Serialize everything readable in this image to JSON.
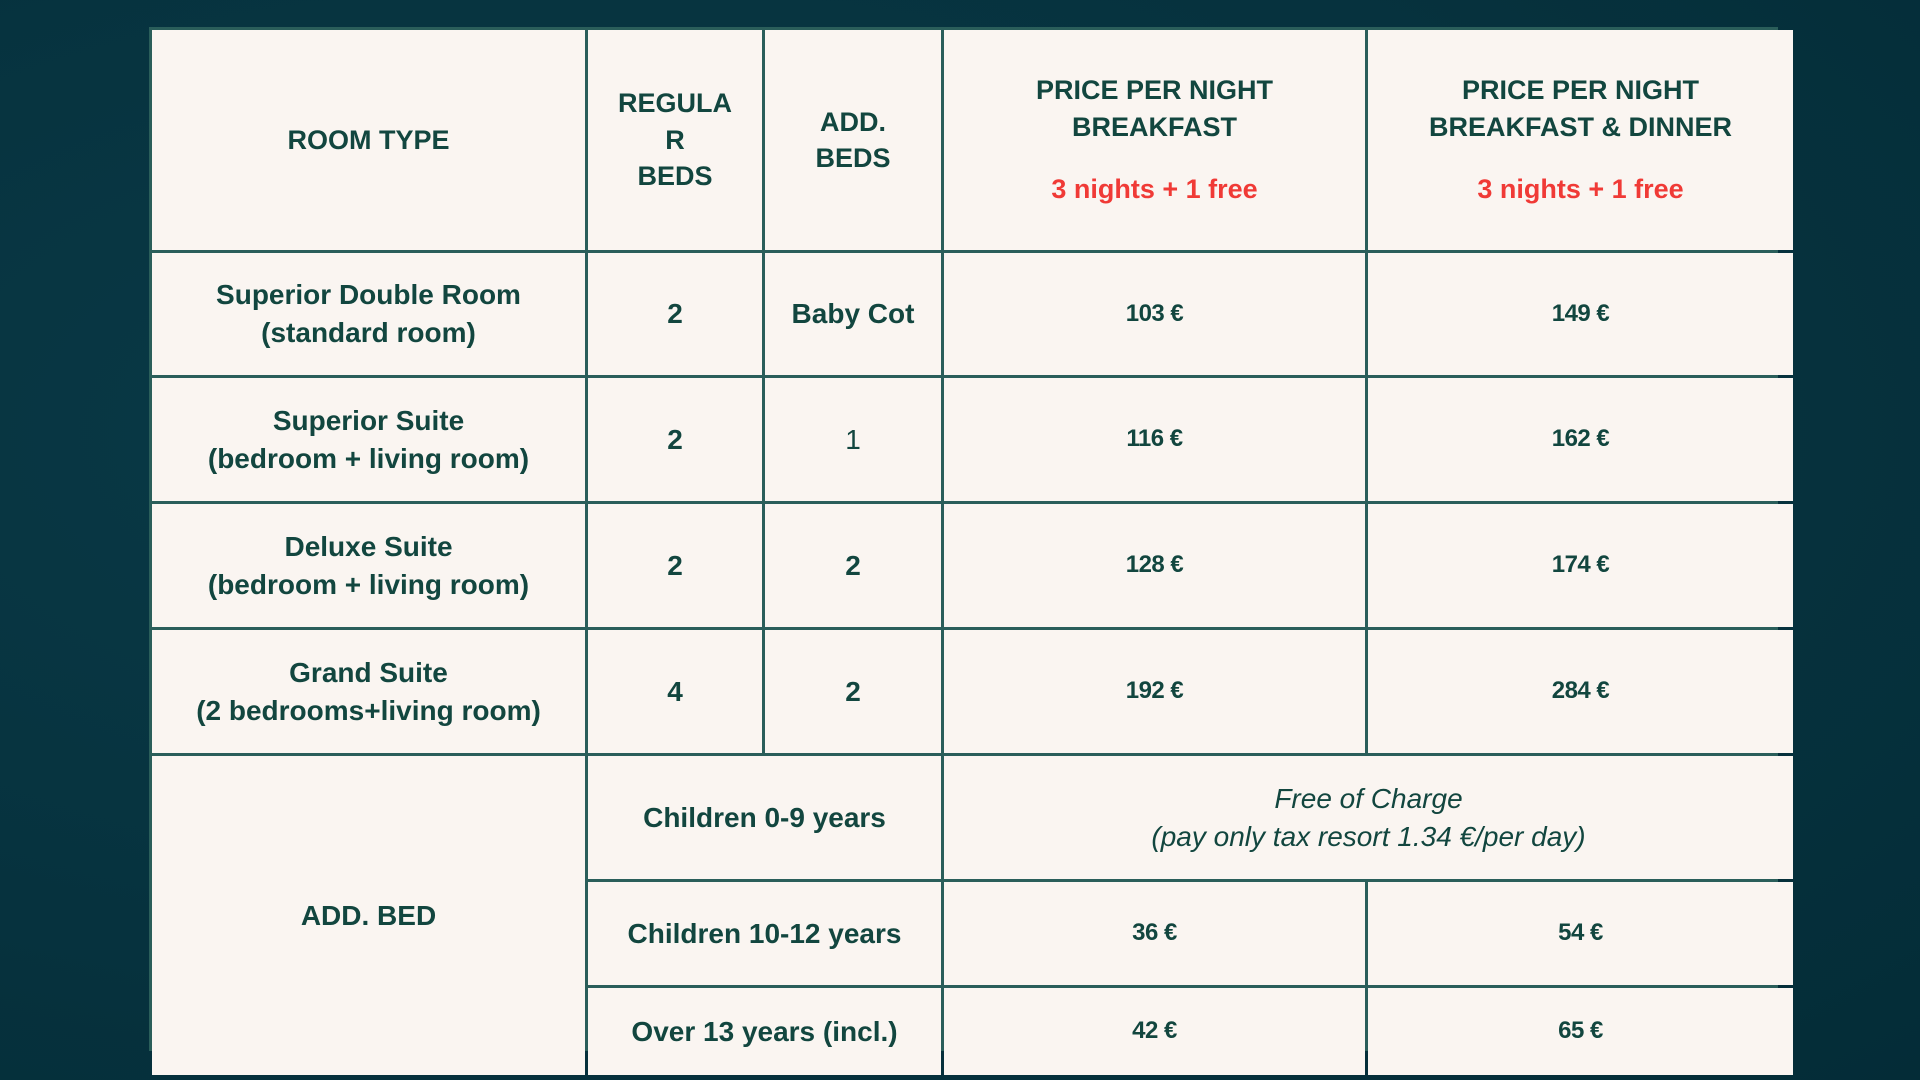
{
  "header": {
    "room_type": "ROOM TYPE",
    "regular_beds": "REGULA\nR\nBEDS",
    "add_beds": "ADD.\nBEDS",
    "price_breakfast": "PRICE PER NIGHT\nBREAKFAST",
    "price_bd": "PRICE PER NIGHT\nBREAKFAST & DINNER",
    "promo": "3 nights + 1 free",
    "promo_color": "#f03a36"
  },
  "rooms": [
    {
      "name": "Superior Double Room",
      "sub": "(standard room)",
      "regular": "2",
      "add": "Baby Cot",
      "breakfast": "103 €",
      "bd": "149 €"
    },
    {
      "name": "Superior Suite",
      "sub": "(bedroom + living room)",
      "regular": "2",
      "add": "1",
      "breakfast": "116 €",
      "bd": "162 €"
    },
    {
      "name": "Deluxe Suite",
      "sub": "(bedroom + living room)",
      "regular": "2",
      "add": "2",
      "breakfast": "128 €",
      "bd": "174 €"
    },
    {
      "name": "Grand Suite",
      "sub": "(2 bedrooms+living room)",
      "regular": "4",
      "add": "2",
      "breakfast": "192 €",
      "bd": "284 €"
    }
  ],
  "add_bed": {
    "label": "ADD. BED",
    "rows": [
      {
        "age": "Children 0-9 years",
        "note": "Free of Charge",
        "note2": "(pay only tax resort 1.34 €/per day)"
      },
      {
        "age": "Children 10-12 years",
        "breakfast": "36 €",
        "bd": "54 €"
      },
      {
        "age": "Over 13 years (incl.)",
        "breakfast": "42 €",
        "bd": "65 €"
      }
    ]
  }
}
